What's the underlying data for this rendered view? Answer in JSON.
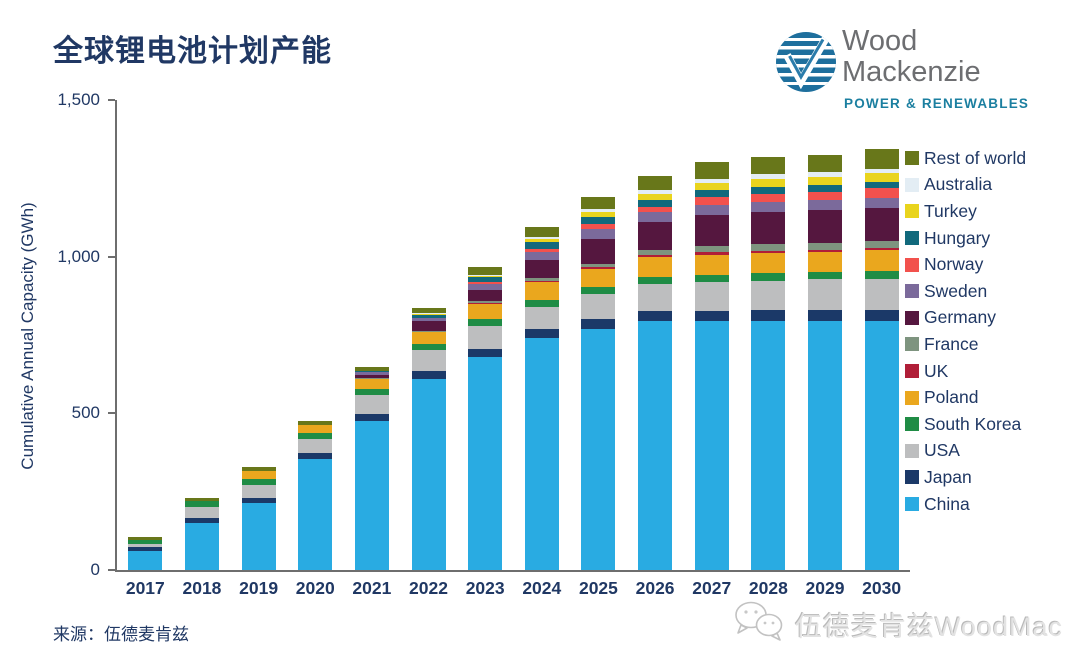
{
  "title": "全球锂电池计划产能",
  "logo": {
    "name": "Wood Mackenzie",
    "line1": "Wood",
    "line2": "Mackenzie",
    "tagline": "POWER & RENEWABLES",
    "icon": "woodmac-globe-check-icon",
    "colors": {
      "icon_blue": "#1e6f9d",
      "text_gray": "#6d6e71",
      "tagline_teal": "#1b7fa0"
    }
  },
  "chart_data": {
    "type": "bar",
    "variant": "stacked",
    "title": "全球锂电池计划产能",
    "xlabel": "",
    "ylabel": "Cumulative Annual Capacity (GWh)",
    "ylim": [
      0,
      1500
    ],
    "ytick_values": [
      0,
      500,
      1000,
      1500
    ],
    "ytick_labels": [
      "0",
      "500",
      "1,000",
      "1,500"
    ],
    "grid": false,
    "legend_position": "right",
    "legend_order": "top-to-bottom is reverse of stack (Rest of world on top, China at bottom)",
    "categories": [
      "2017",
      "2018",
      "2019",
      "2020",
      "2021",
      "2022",
      "2023",
      "2024",
      "2025",
      "2026",
      "2027",
      "2028",
      "2029",
      "2030"
    ],
    "series": [
      {
        "name": "China",
        "color": "#29abe2",
        "values": [
          60,
          150,
          215,
          355,
          475,
          610,
          680,
          740,
          770,
          795,
          795,
          795,
          795,
          795
        ]
      },
      {
        "name": "Japan",
        "color": "#1b3968",
        "values": [
          15,
          15,
          16,
          18,
          22,
          26,
          26,
          28,
          30,
          32,
          33,
          34,
          35,
          35
        ]
      },
      {
        "name": "USA",
        "color": "#bdbebf",
        "values": [
          8,
          35,
          40,
          45,
          60,
          65,
          73,
          73,
          80,
          85,
          92,
          95,
          98,
          100
        ]
      },
      {
        "name": "South Korea",
        "color": "#1f8c45",
        "values": [
          12,
          20,
          20,
          20,
          20,
          21,
          21,
          22,
          22,
          23,
          23,
          24,
          24,
          25
        ]
      },
      {
        "name": "Poland",
        "color": "#eaa71e",
        "values": [
          0,
          0,
          25,
          25,
          32,
          37,
          50,
          55,
          60,
          63,
          64,
          64,
          64,
          65
        ]
      },
      {
        "name": "UK",
        "color": "#b01e38",
        "values": [
          0,
          0,
          0,
          0,
          2,
          2,
          3,
          5,
          6,
          6,
          7,
          7,
          7,
          7
        ]
      },
      {
        "name": "France",
        "color": "#7e947f",
        "values": [
          0,
          0,
          0,
          0,
          3,
          3,
          5,
          8,
          10,
          18,
          20,
          21,
          22,
          22
        ]
      },
      {
        "name": "Germany",
        "color": "#55173f",
        "values": [
          0,
          0,
          0,
          0,
          10,
          30,
          35,
          60,
          80,
          90,
          100,
          103,
          105,
          105
        ]
      },
      {
        "name": "Sweden",
        "color": "#7b6a9b",
        "values": [
          0,
          0,
          0,
          0,
          8,
          10,
          20,
          25,
          32,
          32,
          32,
          32,
          32,
          32
        ]
      },
      {
        "name": "Norway",
        "color": "#f2514d",
        "values": [
          0,
          0,
          0,
          0,
          0,
          2,
          5,
          8,
          15,
          15,
          24,
          26,
          26,
          32
        ]
      },
      {
        "name": "Hungary",
        "color": "#11697c",
        "values": [
          0,
          0,
          0,
          0,
          3,
          8,
          16,
          22,
          22,
          22,
          22,
          22,
          22,
          22
        ]
      },
      {
        "name": "Turkey",
        "color": "#e9d41d",
        "values": [
          0,
          0,
          0,
          0,
          0,
          3,
          5,
          10,
          15,
          20,
          24,
          26,
          26,
          26
        ]
      },
      {
        "name": "Australia",
        "color": "#e3edf4",
        "values": [
          0,
          0,
          0,
          0,
          0,
          2,
          3,
          8,
          10,
          12,
          13,
          14,
          15,
          15
        ]
      },
      {
        "name": "Rest of world",
        "color": "#68771a",
        "values": [
          10,
          10,
          13,
          13,
          13,
          16,
          26,
          30,
          40,
          45,
          52,
          54,
          54,
          64
        ]
      }
    ]
  },
  "source": "来源：伍德麦肯兹",
  "watermark": {
    "icon": "wechat-icon",
    "text": "伍德麦肯兹WoodMac"
  },
  "colors": {
    "text_navy": "#203864",
    "axis_gray": "#6e6e6e",
    "watermark_gray": "#e3e3e3"
  }
}
